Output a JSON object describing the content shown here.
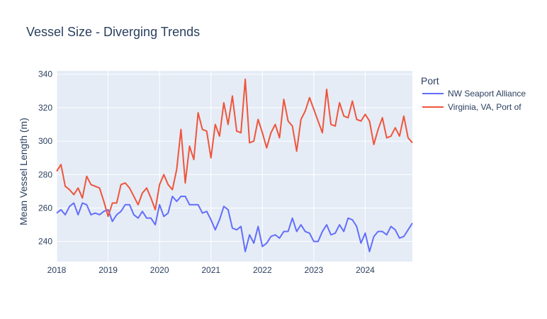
{
  "chart_data": {
    "type": "line",
    "title": "Vessel Size - Diverging Trends",
    "xlabel": "",
    "ylabel": "Mean Vessel Length (m)",
    "legend_title": "Port",
    "legend_position": "right",
    "grid": true,
    "xlim": [
      "2018-01",
      "2024-12"
    ],
    "ylim": [
      228,
      342
    ],
    "x_ticks": [
      "2018",
      "2019",
      "2020",
      "2021",
      "2022",
      "2023",
      "2024"
    ],
    "y_ticks": [
      240,
      260,
      280,
      300,
      320,
      340
    ],
    "x": [
      "2018-01",
      "2018-02",
      "2018-03",
      "2018-04",
      "2018-05",
      "2018-06",
      "2018-07",
      "2018-08",
      "2018-09",
      "2018-10",
      "2018-11",
      "2018-12",
      "2019-01",
      "2019-02",
      "2019-03",
      "2019-04",
      "2019-05",
      "2019-06",
      "2019-07",
      "2019-08",
      "2019-09",
      "2019-10",
      "2019-11",
      "2019-12",
      "2020-01",
      "2020-02",
      "2020-03",
      "2020-04",
      "2020-05",
      "2020-06",
      "2020-07",
      "2020-08",
      "2020-09",
      "2020-10",
      "2020-11",
      "2020-12",
      "2021-01",
      "2021-02",
      "2021-03",
      "2021-04",
      "2021-05",
      "2021-06",
      "2021-07",
      "2021-08",
      "2021-09",
      "2021-10",
      "2021-11",
      "2021-12",
      "2022-01",
      "2022-02",
      "2022-03",
      "2022-04",
      "2022-05",
      "2022-06",
      "2022-07",
      "2022-08",
      "2022-09",
      "2022-10",
      "2022-11",
      "2022-12",
      "2023-01",
      "2023-02",
      "2023-03",
      "2023-04",
      "2023-05",
      "2023-06",
      "2023-07",
      "2023-08",
      "2023-09",
      "2023-10",
      "2023-11",
      "2023-12",
      "2024-01",
      "2024-02",
      "2024-03",
      "2024-04",
      "2024-05",
      "2024-06",
      "2024-07",
      "2024-08",
      "2024-09",
      "2024-10",
      "2024-11",
      "2024-12"
    ],
    "series": [
      {
        "name": "NW Seaport Alliance",
        "color": "#636efa",
        "values": [
          257,
          259,
          256,
          261,
          263,
          256,
          263,
          262,
          256,
          257,
          256,
          258,
          259,
          252,
          256,
          258,
          262,
          262,
          256,
          254,
          258,
          254,
          254,
          250,
          262,
          255,
          257,
          267,
          264,
          267,
          267,
          262,
          262,
          262,
          257,
          258,
          253,
          247,
          253,
          261,
          259,
          248,
          247,
          249,
          234,
          244,
          239,
          249,
          237,
          239,
          243,
          244,
          242,
          246,
          246,
          254,
          246,
          250,
          246,
          245,
          240,
          240,
          246,
          250,
          244,
          245,
          250,
          246,
          254,
          253,
          249,
          239,
          245,
          234,
          243,
          246,
          246,
          244,
          249,
          247,
          242,
          243,
          247,
          251
        ]
      },
      {
        "name": "Virginia, VA, Port of",
        "color": "#ef553b",
        "values": [
          282,
          286,
          273,
          271,
          268,
          272,
          266,
          279,
          274,
          273,
          272,
          264,
          255,
          263,
          263,
          274,
          275,
          272,
          267,
          262,
          269,
          272,
          266,
          259,
          274,
          280,
          274,
          271,
          283,
          307,
          275,
          297,
          289,
          317,
          307,
          306,
          290,
          310,
          303,
          323,
          310,
          327,
          306,
          305,
          337,
          299,
          300,
          313,
          305,
          296,
          305,
          310,
          302,
          325,
          312,
          309,
          294,
          313,
          318,
          326,
          319,
          312,
          305,
          331,
          310,
          309,
          323,
          315,
          314,
          324,
          313,
          312,
          316,
          312,
          298,
          307,
          314,
          302,
          303,
          308,
          303,
          315,
          302,
          299
        ]
      }
    ]
  }
}
